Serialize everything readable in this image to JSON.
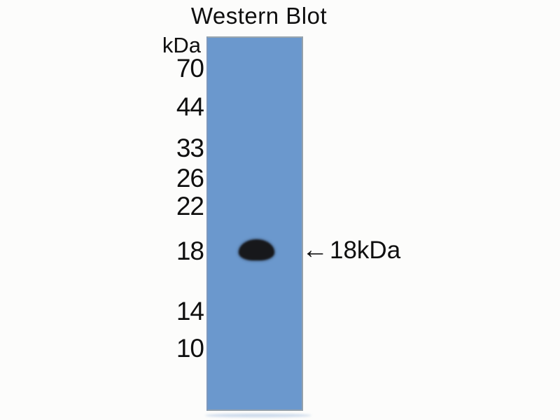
{
  "chart_data": {
    "type": "heatmap",
    "title": "Western Blot",
    "ylabel": "kDa",
    "yticks": [
      "70",
      "44",
      "33",
      "26",
      "22",
      "18",
      "14",
      "10"
    ],
    "ylim": [
      10,
      70
    ],
    "lanes": 1,
    "bands": [
      {
        "lane": 1,
        "kda": 18,
        "label": "18kDa",
        "arrow": "←",
        "intensity": "strong"
      }
    ],
    "legend": false,
    "grid": false
  },
  "colors": {
    "membrane": "#6b98cd",
    "band": "#17181b",
    "text": "#0f0f0f",
    "background": "#fcfcfb",
    "lane_edge": "#93a0ab"
  }
}
